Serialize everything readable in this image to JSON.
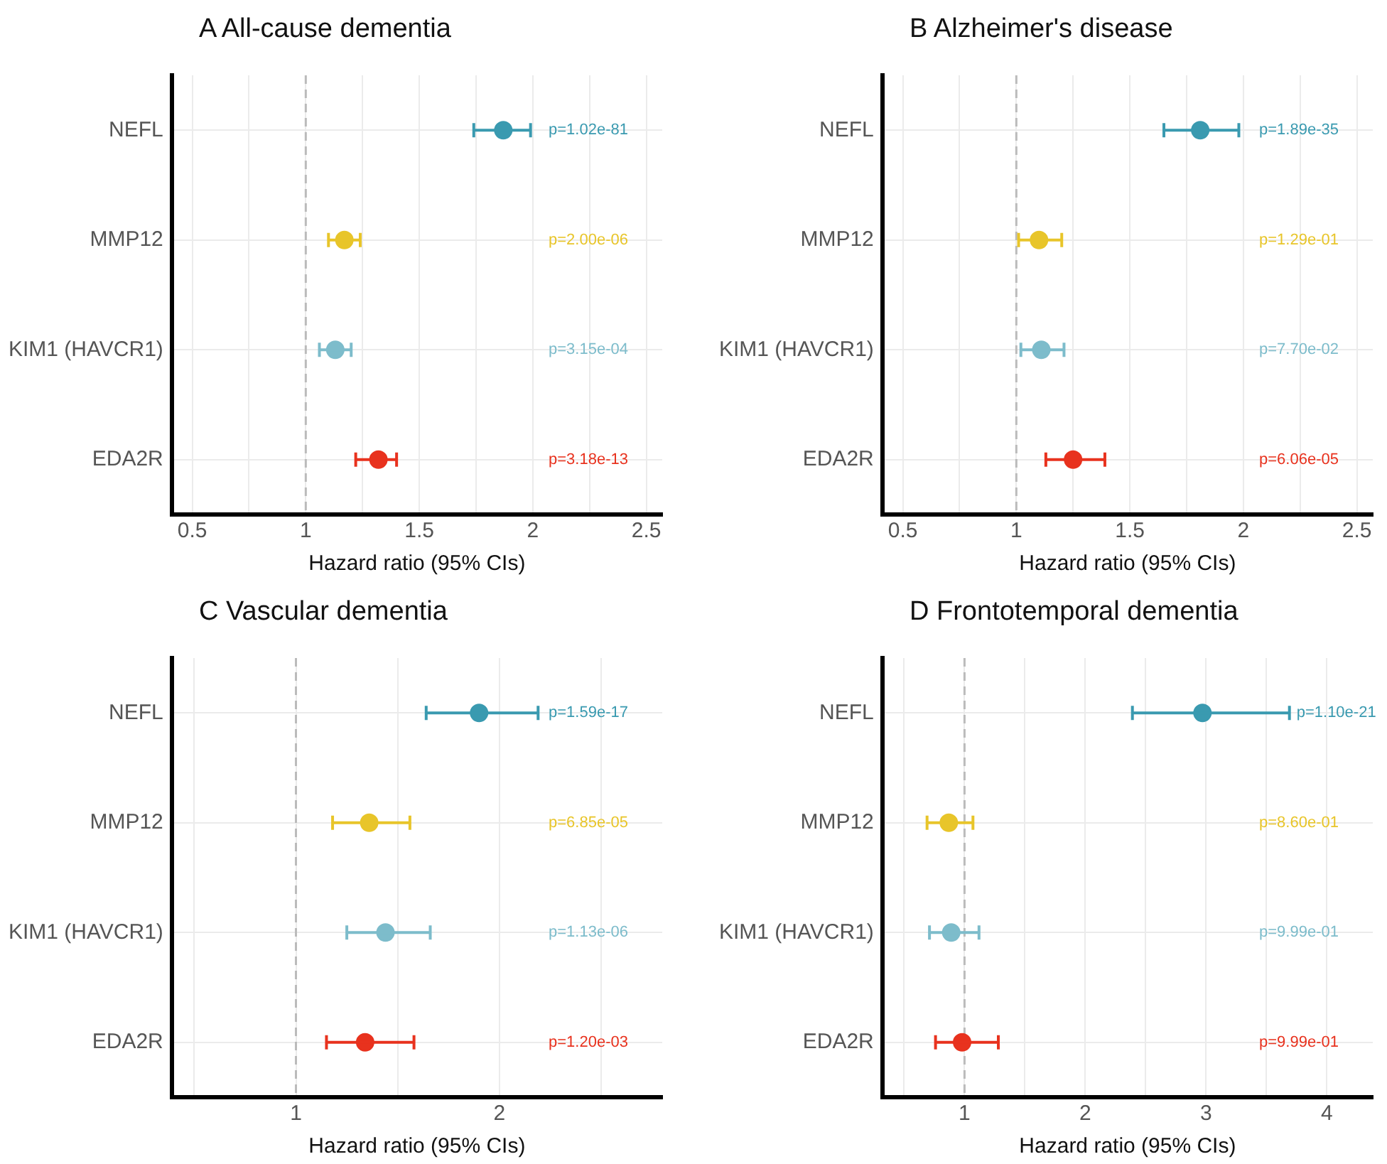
{
  "chart_data": [
    {
      "type": "scatter",
      "orientation": "horizontal",
      "title": "A All-cause dementia",
      "xlabel": "Hazard ratio (95% CIs)",
      "categories": [
        "NEFL",
        "MMP12",
        "KIM1 (HAVCR1)",
        "EDA2R"
      ],
      "values": [
        1.87,
        1.17,
        1.13,
        1.32
      ],
      "errors": [
        [
          1.74,
          1.99
        ],
        [
          1.1,
          1.24
        ],
        [
          1.06,
          1.2
        ],
        [
          1.22,
          1.4
        ]
      ],
      "colors": [
        "#3a9ab0",
        "#e8c52a",
        "#7dbccb",
        "#e8321e"
      ],
      "annotations": [
        "p=1.02e-81",
        "p=2.00e-06",
        "p=3.15e-04",
        "p=3.18e-13"
      ],
      "xlim": [
        0.41,
        2.57
      ],
      "xticks": [
        0.5,
        {
          "value": 0.75,
          "label": null
        },
        1.0,
        {
          "value": 1.25,
          "label": null
        },
        1.5,
        {
          "value": 1.75,
          "label": null
        },
        2.0,
        {
          "value": 2.25,
          "label": null
        },
        2.5
      ],
      "ref_lines": [
        {
          "axis": "x",
          "value": 1,
          "color": "#bbbbbb",
          "line_style": "dashed"
        }
      ],
      "grid": true,
      "marker": "circle",
      "legend": false
    },
    {
      "type": "scatter",
      "orientation": "horizontal",
      "title": "B Alzheimer's disease",
      "xlabel": "Hazard ratio (95% CIs)",
      "categories": [
        "NEFL",
        "MMP12",
        "KIM1 (HAVCR1)",
        "EDA2R"
      ],
      "values": [
        1.81,
        1.1,
        1.11,
        1.25
      ],
      "errors": [
        [
          1.65,
          1.98
        ],
        [
          1.01,
          1.2
        ],
        [
          1.02,
          1.21
        ],
        [
          1.13,
          1.39
        ]
      ],
      "colors": [
        "#3a9ab0",
        "#e8c52a",
        "#7dbccb",
        "#e8321e"
      ],
      "annotations": [
        "p=1.89e-35",
        "p=1.29e-01",
        "p=7.70e-02",
        "p=6.06e-05"
      ],
      "xlim": [
        0.41,
        2.57
      ],
      "xticks": [
        0.5,
        {
          "value": 0.75,
          "label": null
        },
        1.0,
        {
          "value": 1.25,
          "label": null
        },
        1.5,
        {
          "value": 1.75,
          "label": null
        },
        2.0,
        {
          "value": 2.25,
          "label": null
        },
        2.5
      ],
      "ref_lines": [
        {
          "axis": "x",
          "value": 1,
          "color": "#bbbbbb",
          "line_style": "dashed"
        }
      ],
      "grid": true,
      "marker": "circle",
      "legend": false
    },
    {
      "type": "scatter",
      "orientation": "horizontal",
      "title": "C Vascular dementia",
      "xlabel": "Hazard ratio (95% CIs)",
      "categories": [
        "NEFL",
        "MMP12",
        "KIM1 (HAVCR1)",
        "EDA2R"
      ],
      "values": [
        1.9,
        1.36,
        1.44,
        1.34
      ],
      "errors": [
        [
          1.64,
          2.19
        ],
        [
          1.18,
          1.56
        ],
        [
          1.25,
          1.66
        ],
        [
          1.15,
          1.58
        ]
      ],
      "colors": [
        "#3a9ab0",
        "#e8c52a",
        "#7dbccb",
        "#e8321e"
      ],
      "annotations": [
        "p=1.59e-17",
        "p=6.85e-05",
        "p=1.13e-06",
        "p=1.20e-03"
      ],
      "xlim": [
        0.39,
        2.8
      ],
      "xticks": [
        {
          "value": 0.5,
          "label": null
        },
        1,
        {
          "value": 1.5,
          "label": null
        },
        2,
        {
          "value": 2.5,
          "label": null
        }
      ],
      "ref_lines": [
        {
          "axis": "x",
          "value": 1,
          "color": "#bbbbbb",
          "line_style": "dashed"
        }
      ],
      "grid": true,
      "marker": "circle",
      "legend": false
    },
    {
      "type": "scatter",
      "orientation": "horizontal",
      "title": "D Frontotemporal dementia",
      "xlabel": "Hazard ratio (95% CIs)",
      "categories": [
        "NEFL",
        "MMP12",
        "KIM1 (HAVCR1)",
        "EDA2R"
      ],
      "values": [
        2.97,
        0.87,
        0.89,
        0.98
      ],
      "errors": [
        [
          2.39,
          3.69
        ],
        [
          0.69,
          1.07
        ],
        [
          0.71,
          1.12
        ],
        [
          0.76,
          1.28
        ]
      ],
      "colors": [
        "#3a9ab0",
        "#e8c52a",
        "#7dbccb",
        "#e8321e"
      ],
      "annotations": [
        "p=1.10e-21",
        "p=8.60e-01",
        "p=9.99e-01",
        "p=9.99e-01"
      ],
      "xlim": [
        0.32,
        4.38
      ],
      "xticks": [
        {
          "value": 0.5,
          "label": null
        },
        1,
        {
          "value": 1.5,
          "label": null
        },
        2,
        {
          "value": 2.5,
          "label": null
        },
        3,
        {
          "value": 3.5,
          "label": null
        },
        4
      ],
      "ref_lines": [
        {
          "axis": "x",
          "value": 1,
          "color": "#bbbbbb",
          "line_style": "dashed"
        }
      ],
      "grid": true,
      "marker": "circle",
      "legend": false
    }
  ]
}
